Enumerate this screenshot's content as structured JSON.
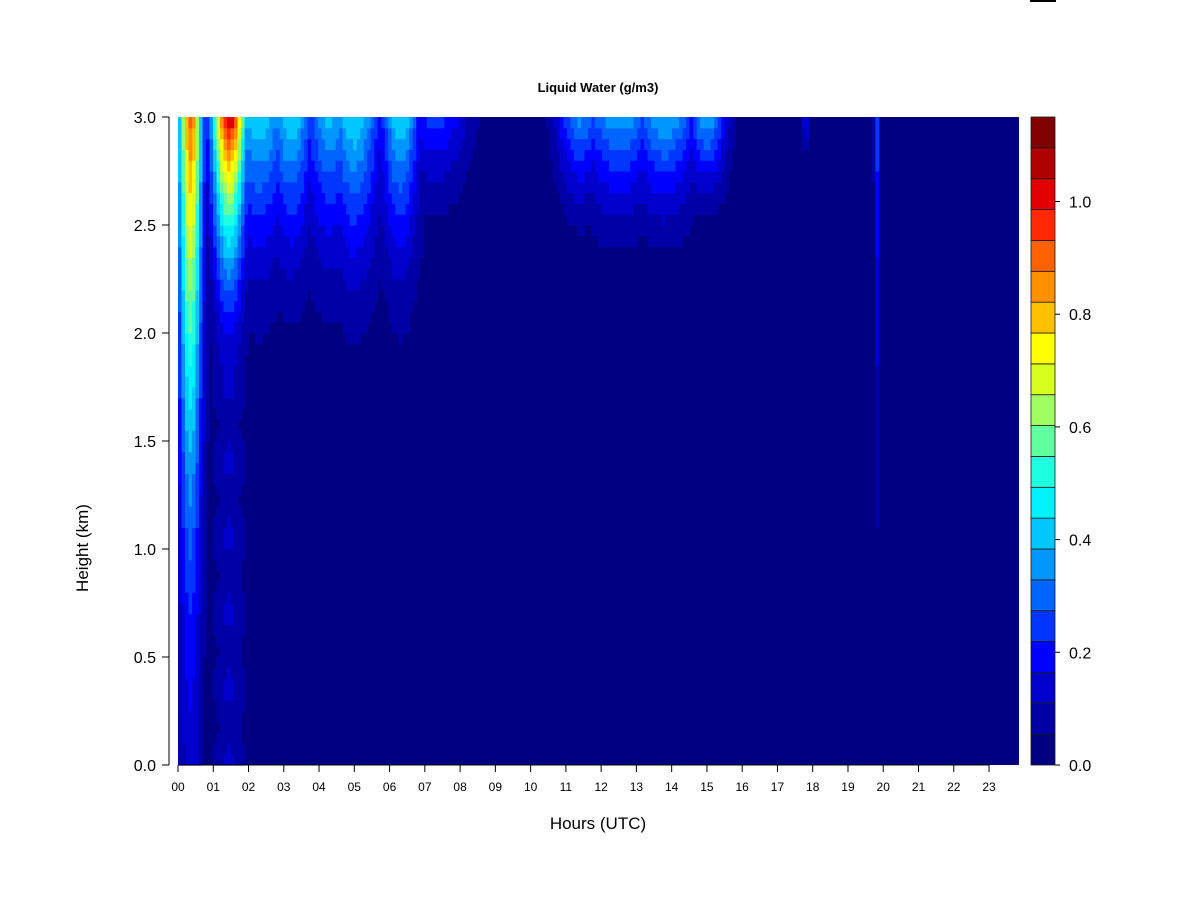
{
  "chart_data": {
    "type": "heatmap",
    "title": "Liquid Water (g/m3)",
    "xlabel": "Hours (UTC)",
    "ylabel": "Height (km)",
    "xlim": [
      0,
      23.85
    ],
    "ylim": [
      0.0,
      3.0
    ],
    "x_tick_labels": [
      "00",
      "01",
      "02",
      "03",
      "04",
      "05",
      "06",
      "07",
      "08",
      "09",
      "10",
      "11",
      "12",
      "13",
      "14",
      "15",
      "16",
      "17",
      "18",
      "19",
      "20",
      "21",
      "22",
      "23"
    ],
    "y_tick_labels": [
      "0.0",
      "0.5",
      "1.0",
      "1.5",
      "2.0",
      "2.5",
      "3.0"
    ],
    "colorbar": {
      "min": 0.0,
      "max": 1.15,
      "tick_labels": [
        "0.0",
        "0.2",
        "0.4",
        "0.6",
        "0.8",
        "1.0"
      ],
      "colors": [
        "#000080",
        "#0000A6",
        "#0000CC",
        "#0000FF",
        "#0036FF",
        "#0064FF",
        "#0096FF",
        "#00C8FF",
        "#00F0FF",
        "#20FFE0",
        "#60FFA0",
        "#A0FF60",
        "#D8FF20",
        "#FFFF00",
        "#FFC000",
        "#FF9000",
        "#FF6000",
        "#FF2800",
        "#E00000",
        "#B00000",
        "#800000"
      ]
    },
    "features": [
      {
        "x": 0.0,
        "width": 0.4,
        "peak": 0.45,
        "base": 0.05,
        "onset_km": 0.0
      },
      {
        "x": 0.35,
        "width": 0.35,
        "peak": 0.9,
        "base": 0.15,
        "onset_km": 0.0
      },
      {
        "x": 1.45,
        "width": 0.5,
        "peak": 1.05,
        "base": 0.12,
        "onset_km": 1.8
      },
      {
        "x": 2.3,
        "width": 0.9,
        "peak": 0.45,
        "base": 0.05,
        "onset_km": 1.9
      },
      {
        "x": 3.2,
        "width": 0.7,
        "peak": 0.45,
        "base": 0.04,
        "onset_km": 1.9
      },
      {
        "x": 4.3,
        "width": 0.8,
        "peak": 0.4,
        "base": 0.04,
        "onset_km": 1.9
      },
      {
        "x": 5.0,
        "width": 0.8,
        "peak": 0.45,
        "base": 0.04,
        "onset_km": 1.8
      },
      {
        "x": 6.3,
        "width": 0.6,
        "peak": 0.45,
        "base": 0.05,
        "onset_km": 1.9
      },
      {
        "x": 7.3,
        "width": 1.0,
        "peak": 0.25,
        "base": 0.01,
        "onset_km": 2.3
      },
      {
        "x": 11.4,
        "width": 0.7,
        "peak": 0.35,
        "base": 0.02,
        "onset_km": 2.3
      },
      {
        "x": 12.5,
        "width": 1.2,
        "peak": 0.38,
        "base": 0.02,
        "onset_km": 2.2
      },
      {
        "x": 13.8,
        "width": 1.0,
        "peak": 0.4,
        "base": 0.02,
        "onset_km": 2.2
      },
      {
        "x": 15.0,
        "width": 0.6,
        "peak": 0.4,
        "base": 0.02,
        "onset_km": 2.4
      },
      {
        "x": 17.8,
        "width": 0.1,
        "peak": 0.2,
        "base": 0.01,
        "onset_km": 2.7
      },
      {
        "x": 19.8,
        "width": 0.06,
        "peak": 0.3,
        "base": 0.05,
        "onset_km": 0.7
      }
    ]
  }
}
